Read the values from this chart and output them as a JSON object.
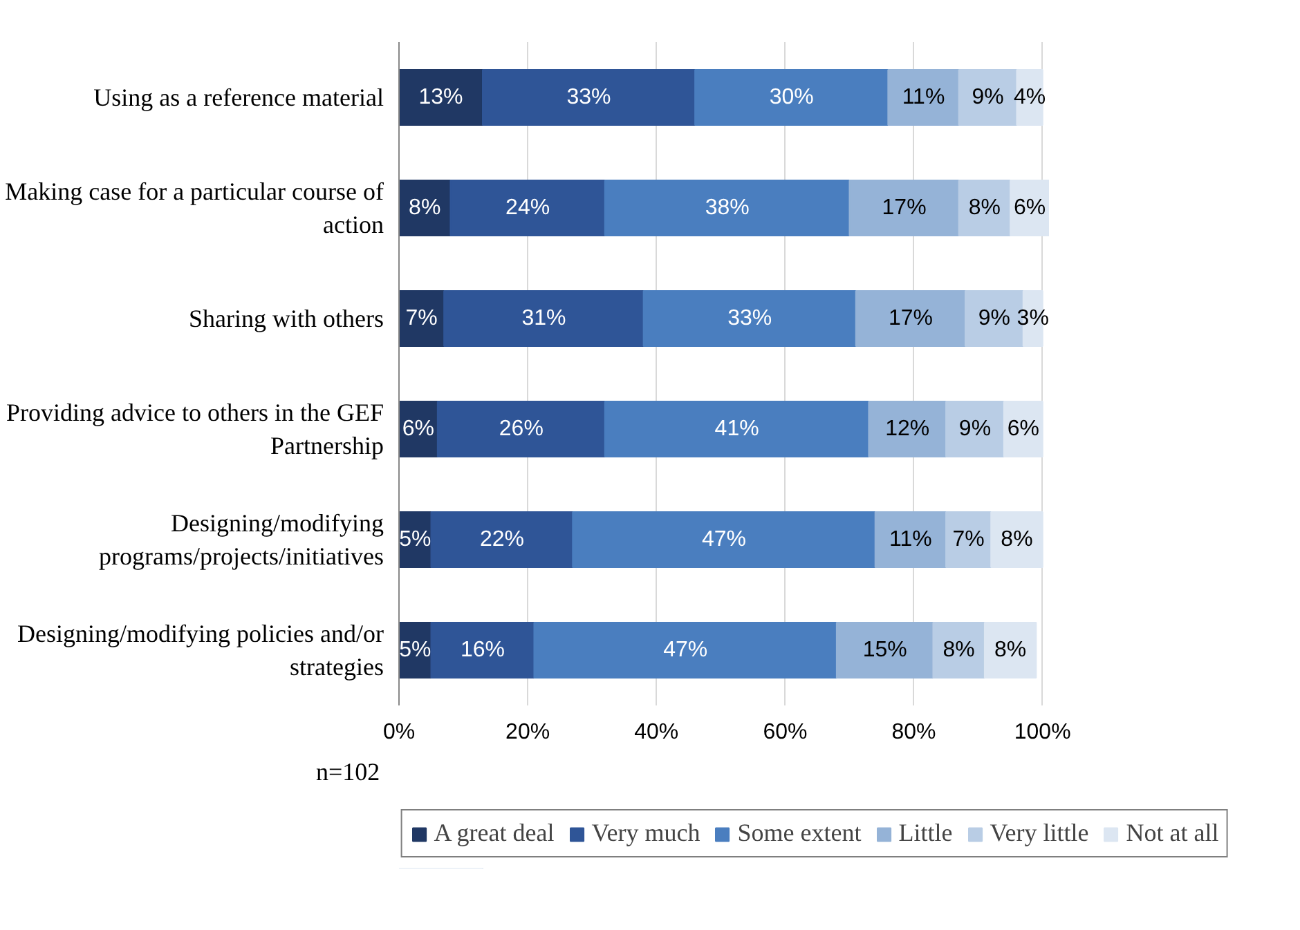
{
  "chart_data": {
    "type": "bar",
    "orientation": "horizontal",
    "stacked": true,
    "data_labels": true,
    "categories": [
      "Using as a reference material",
      "Making case for a particular course of action",
      "Sharing with others",
      "Providing advice to others in the GEF Partnership",
      "Designing/modifying programs/projects/initiatives",
      "Designing/modifying policies and/or strategies"
    ],
    "series": [
      {
        "name": "A great deal",
        "color": "#203864",
        "values": [
          13,
          8,
          7,
          6,
          5,
          5
        ],
        "value_labels": [
          "13%",
          "8%",
          "7%",
          "6%",
          "5%",
          "5%"
        ]
      },
      {
        "name": "Very much",
        "color": "#2f5597",
        "values": [
          33,
          24,
          31,
          26,
          22,
          16
        ],
        "value_labels": [
          "33%",
          "24%",
          "31%",
          "26%",
          "22%",
          "16%"
        ]
      },
      {
        "name": "Some extent",
        "color": "#4a7ebf",
        "values": [
          30,
          38,
          33,
          41,
          47,
          47
        ],
        "value_labels": [
          "30%",
          "38%",
          "33%",
          "41%",
          "47%",
          "47%"
        ]
      },
      {
        "name": "Little",
        "color": "#95b3d7",
        "values": [
          11,
          17,
          17,
          12,
          11,
          15
        ],
        "value_labels": [
          "11%",
          "17%",
          "17%",
          "12%",
          "11%",
          "15%"
        ]
      },
      {
        "name": "Very little",
        "color": "#b9cde5",
        "values": [
          9,
          8,
          9,
          9,
          7,
          8
        ],
        "value_labels": [
          "9%",
          "8%",
          "9%",
          "9%",
          "7%",
          "8%"
        ]
      },
      {
        "name": "Not at all",
        "color": "#dce6f2",
        "values": [
          4,
          6,
          3,
          6,
          8,
          8
        ],
        "value_labels": [
          "4%",
          "6%",
          "3%",
          "6%",
          "8%",
          "8%"
        ]
      }
    ],
    "xlim": [
      0,
      101
    ],
    "xticks": [
      {
        "value": 0,
        "label": "0%"
      },
      {
        "value": 20,
        "label": "20%"
      },
      {
        "value": 40,
        "label": "40%"
      },
      {
        "value": 60,
        "label": "60%"
      },
      {
        "value": 80,
        "label": "80%"
      },
      {
        "value": 100,
        "label": "100%"
      }
    ],
    "grid": "x",
    "legend": "bottom",
    "annotations": [
      "n=102"
    ]
  }
}
